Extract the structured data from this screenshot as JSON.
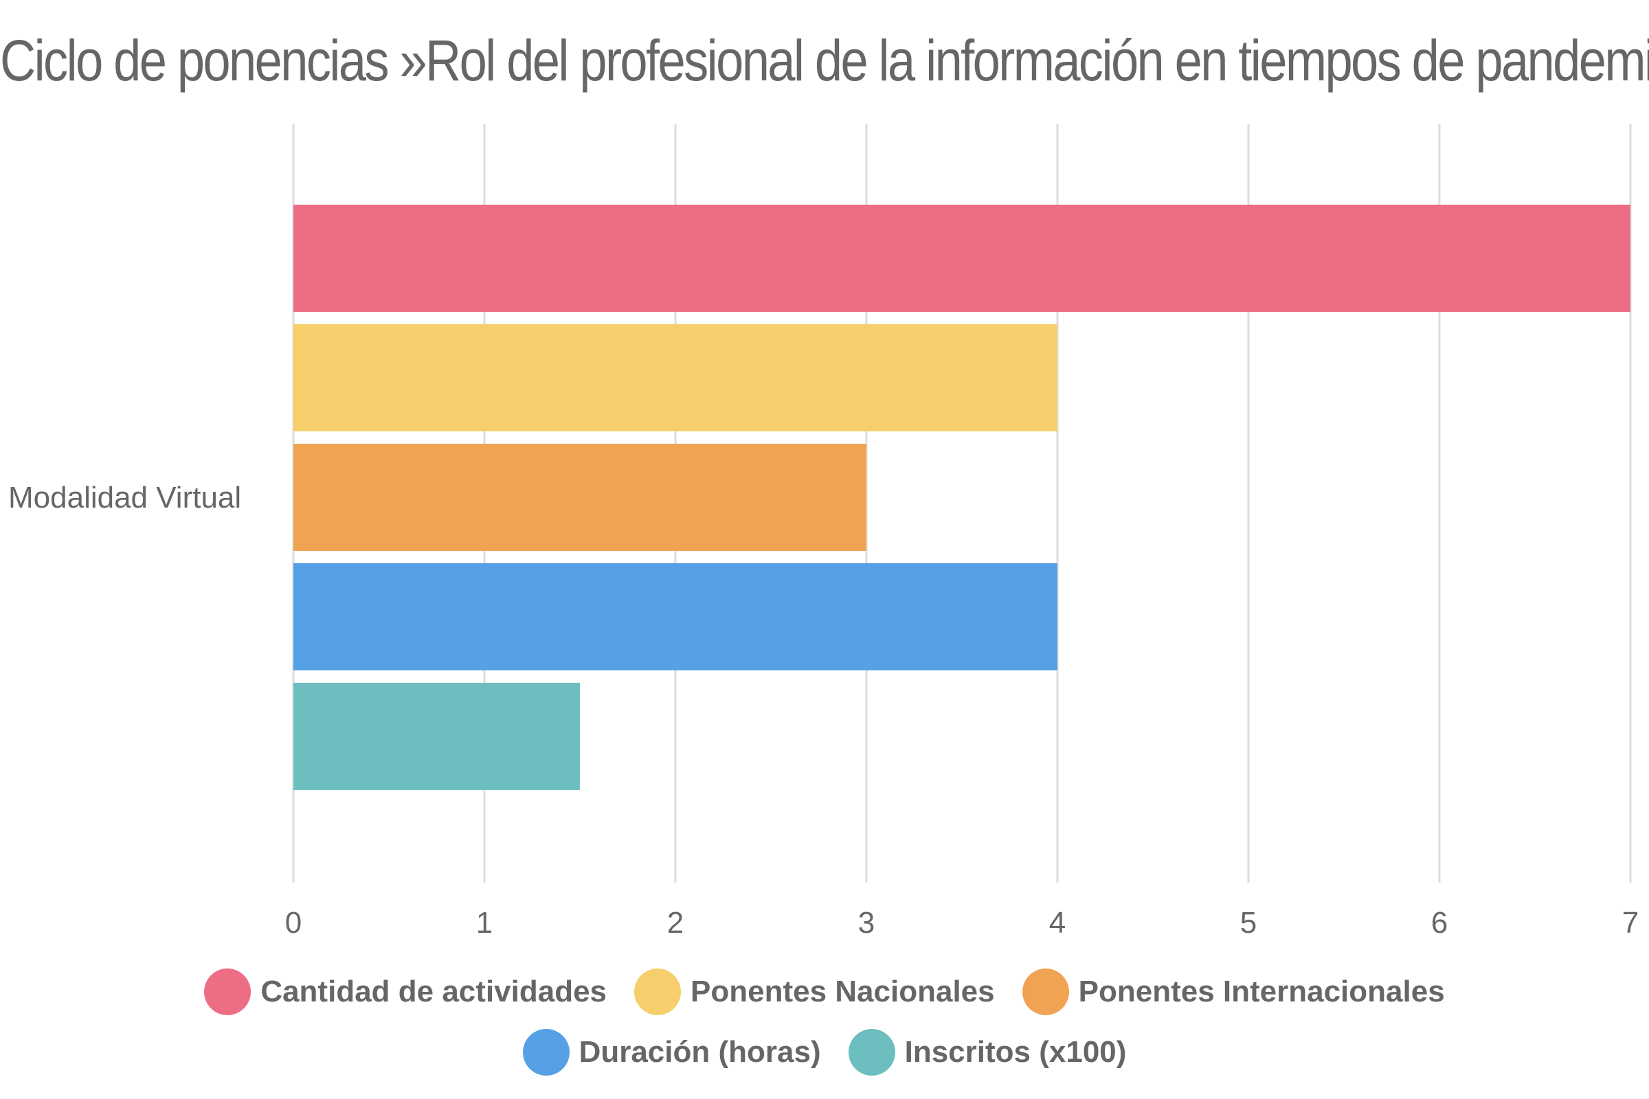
{
  "chart_data": {
    "type": "bar",
    "orientation": "horizontal",
    "title": "Ciclo de ponencias »Rol del profesional de la información en tiempos de pandemia»",
    "categories": [
      "Modalidad Virtual"
    ],
    "series": [
      {
        "name": "Cantidad de actividades",
        "values": [
          7
        ],
        "color": "#ED6D85"
      },
      {
        "name": "Ponentes Nacionales",
        "values": [
          4
        ],
        "color": "#F6CF6C"
      },
      {
        "name": "Ponentes Internacionales",
        "values": [
          3
        ],
        "color": "#F1A354"
      },
      {
        "name": "Duración (horas)",
        "values": [
          4
        ],
        "color": "#56A0E5"
      },
      {
        "name": "Inscritos (x100)",
        "values": [
          1.5
        ],
        "color": "#6CBEBF"
      }
    ],
    "xlim": [
      0,
      7
    ],
    "xticks": [
      "0",
      "1",
      "2",
      "3",
      "4",
      "5",
      "6",
      "7"
    ],
    "grid": true,
    "legend_position": "bottom"
  }
}
